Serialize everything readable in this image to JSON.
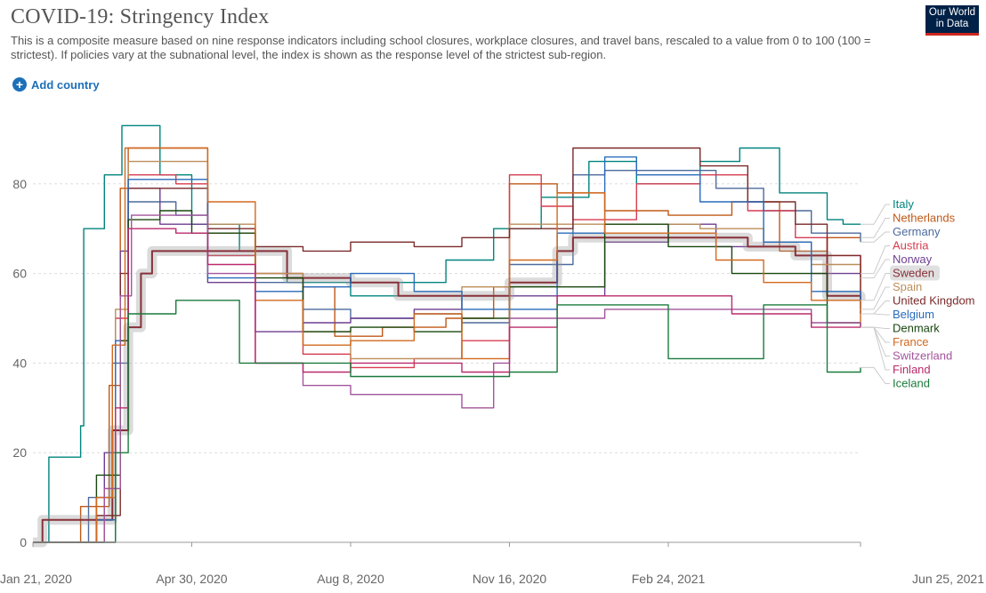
{
  "header": {
    "title": "COVID-19: Stringency Index",
    "subtitle": "This is a composite measure based on nine response indicators including school closures, workplace closures, and travel bans, rescaled to a value from 0 to 100 (100 = strictest). If policies vary at the subnational level, the index is shown as the response level of the strictest sub-region.",
    "logo_line1": "Our World",
    "logo_line2": "in Data",
    "logo_color": "#002147"
  },
  "controls": {
    "add_country_label": "Add country",
    "add_icon": "plus-circle-icon"
  },
  "chart_data": {
    "type": "line",
    "title": "COVID-19: Stringency Index",
    "xlabel": "",
    "ylabel": "",
    "ylim": [
      0,
      100
    ],
    "yticks": [
      0,
      20,
      40,
      60,
      80
    ],
    "xlim": [
      0,
      521
    ],
    "xticks": [
      {
        "day": 0,
        "label": "Jan 21, 2020"
      },
      {
        "day": 100,
        "label": "Apr 30, 2020"
      },
      {
        "day": 200,
        "label": "Aug 8, 2020"
      },
      {
        "day": 300,
        "label": "Nov 16, 2020"
      },
      {
        "day": 400,
        "label": "Feb 24, 2021"
      },
      {
        "day": 521,
        "label": "Jun 25, 2021"
      }
    ],
    "grid": true,
    "highlighted": "Sweden",
    "series": [
      {
        "name": "Italy",
        "color": "#00847e",
        "points": [
          [
            0,
            0
          ],
          [
            10,
            19
          ],
          [
            30,
            26
          ],
          [
            32,
            70
          ],
          [
            45,
            82
          ],
          [
            56,
            93
          ],
          [
            80,
            82
          ],
          [
            100,
            71
          ],
          [
            130,
            65
          ],
          [
            160,
            58
          ],
          [
            200,
            55
          ],
          [
            230,
            58
          ],
          [
            260,
            63
          ],
          [
            290,
            70
          ],
          [
            320,
            77
          ],
          [
            350,
            85
          ],
          [
            380,
            80
          ],
          [
            420,
            85
          ],
          [
            445,
            88
          ],
          [
            470,
            78
          ],
          [
            500,
            72
          ],
          [
            510,
            71
          ],
          [
            521,
            71
          ]
        ]
      },
      {
        "name": "Netherlands",
        "color": "#c05917",
        "points": [
          [
            0,
            0
          ],
          [
            30,
            8
          ],
          [
            48,
            35
          ],
          [
            55,
            79
          ],
          [
            60,
            88
          ],
          [
            90,
            88
          ],
          [
            110,
            69
          ],
          [
            140,
            60
          ],
          [
            170,
            57
          ],
          [
            190,
            46
          ],
          [
            220,
            48
          ],
          [
            260,
            50
          ],
          [
            290,
            57
          ],
          [
            300,
            80
          ],
          [
            330,
            78
          ],
          [
            360,
            74
          ],
          [
            400,
            73
          ],
          [
            440,
            76
          ],
          [
            470,
            65
          ],
          [
            500,
            68
          ],
          [
            521,
            68
          ]
        ]
      },
      {
        "name": "Germany",
        "color": "#4c6a9c",
        "points": [
          [
            0,
            0
          ],
          [
            35,
            10
          ],
          [
            50,
            40
          ],
          [
            60,
            76
          ],
          [
            90,
            73
          ],
          [
            110,
            64
          ],
          [
            140,
            58
          ],
          [
            170,
            52
          ],
          [
            200,
            50
          ],
          [
            240,
            51
          ],
          [
            270,
            49
          ],
          [
            300,
            62
          ],
          [
            340,
            82
          ],
          [
            360,
            83
          ],
          [
            400,
            83
          ],
          [
            430,
            79
          ],
          [
            460,
            74
          ],
          [
            490,
            69
          ],
          [
            521,
            67
          ]
        ]
      },
      {
        "name": "Austria",
        "color": "#d73c50",
        "points": [
          [
            0,
            0
          ],
          [
            40,
            5
          ],
          [
            52,
            50
          ],
          [
            60,
            82
          ],
          [
            90,
            80
          ],
          [
            110,
            64
          ],
          [
            140,
            60
          ],
          [
            170,
            42
          ],
          [
            200,
            39
          ],
          [
            240,
            41
          ],
          [
            270,
            45
          ],
          [
            300,
            82
          ],
          [
            320,
            75
          ],
          [
            340,
            72
          ],
          [
            380,
            80
          ],
          [
            420,
            82
          ],
          [
            450,
            74
          ],
          [
            480,
            68
          ],
          [
            500,
            64
          ],
          [
            521,
            60
          ]
        ]
      },
      {
        "name": "Norway",
        "color": "#6d3e91",
        "points": [
          [
            0,
            0
          ],
          [
            45,
            20
          ],
          [
            55,
            65
          ],
          [
            60,
            79
          ],
          [
            80,
            71
          ],
          [
            110,
            58
          ],
          [
            140,
            47
          ],
          [
            170,
            49
          ],
          [
            200,
            50
          ],
          [
            240,
            52
          ],
          [
            270,
            55
          ],
          [
            300,
            55
          ],
          [
            330,
            55
          ],
          [
            360,
            67
          ],
          [
            400,
            71
          ],
          [
            430,
            66
          ],
          [
            460,
            67
          ],
          [
            490,
            60
          ],
          [
            521,
            59
          ]
        ]
      },
      {
        "name": "Sweden",
        "color": "#883039",
        "points": [
          [
            0,
            0
          ],
          [
            5,
            0
          ],
          [
            6,
            5
          ],
          [
            20,
            5
          ],
          [
            40,
            5
          ],
          [
            50,
            25
          ],
          [
            60,
            48
          ],
          [
            68,
            60
          ],
          [
            75,
            65
          ],
          [
            100,
            65
          ],
          [
            140,
            65
          ],
          [
            160,
            59
          ],
          [
            200,
            58
          ],
          [
            230,
            55
          ],
          [
            260,
            55
          ],
          [
            290,
            55
          ],
          [
            300,
            58
          ],
          [
            320,
            58
          ],
          [
            330,
            65
          ],
          [
            340,
            68
          ],
          [
            380,
            68
          ],
          [
            420,
            68
          ],
          [
            450,
            66
          ],
          [
            480,
            64
          ],
          [
            500,
            55
          ],
          [
            521,
            54
          ]
        ]
      },
      {
        "name": "Spain",
        "color": "#bc8e5a",
        "points": [
          [
            0,
            0
          ],
          [
            40,
            10
          ],
          [
            52,
            52
          ],
          [
            60,
            85
          ],
          [
            90,
            85
          ],
          [
            110,
            71
          ],
          [
            140,
            60
          ],
          [
            170,
            47
          ],
          [
            200,
            41
          ],
          [
            240,
            41
          ],
          [
            270,
            57
          ],
          [
            300,
            71
          ],
          [
            320,
            71
          ],
          [
            360,
            71
          ],
          [
            380,
            71
          ],
          [
            420,
            70
          ],
          [
            460,
            67
          ],
          [
            490,
            62
          ],
          [
            521,
            52
          ]
        ]
      },
      {
        "name": "United Kingdom",
        "color": "#7a2a2a",
        "points": [
          [
            0,
            0
          ],
          [
            40,
            6
          ],
          [
            55,
            60
          ],
          [
            60,
            79
          ],
          [
            90,
            79
          ],
          [
            110,
            70
          ],
          [
            140,
            66
          ],
          [
            170,
            65
          ],
          [
            200,
            67
          ],
          [
            240,
            66
          ],
          [
            270,
            68
          ],
          [
            300,
            70
          ],
          [
            340,
            88
          ],
          [
            380,
            88
          ],
          [
            420,
            84
          ],
          [
            450,
            76
          ],
          [
            480,
            71
          ],
          [
            500,
            64
          ],
          [
            521,
            51
          ]
        ]
      },
      {
        "name": "Belgium",
        "color": "#286bbb",
        "points": [
          [
            0,
            0
          ],
          [
            40,
            5
          ],
          [
            52,
            45
          ],
          [
            60,
            81
          ],
          [
            90,
            81
          ],
          [
            110,
            59
          ],
          [
            140,
            56
          ],
          [
            170,
            57
          ],
          [
            200,
            60
          ],
          [
            240,
            56
          ],
          [
            270,
            52
          ],
          [
            300,
            52
          ],
          [
            330,
            69
          ],
          [
            360,
            86
          ],
          [
            380,
            82
          ],
          [
            420,
            76
          ],
          [
            460,
            67
          ],
          [
            490,
            56
          ],
          [
            521,
            51
          ]
        ]
      },
      {
        "name": "Denmark",
        "color": "#18470f",
        "points": [
          [
            0,
            0
          ],
          [
            40,
            15
          ],
          [
            55,
            45
          ],
          [
            60,
            72
          ],
          [
            80,
            74
          ],
          [
            100,
            69
          ],
          [
            140,
            59
          ],
          [
            170,
            47
          ],
          [
            200,
            48
          ],
          [
            240,
            47
          ],
          [
            270,
            50
          ],
          [
            300,
            57
          ],
          [
            330,
            57
          ],
          [
            360,
            71
          ],
          [
            400,
            66
          ],
          [
            440,
            60
          ],
          [
            470,
            60
          ],
          [
            500,
            49
          ],
          [
            521,
            48
          ]
        ]
      },
      {
        "name": "France",
        "color": "#d2691e",
        "points": [
          [
            0,
            0
          ],
          [
            40,
            10
          ],
          [
            50,
            44
          ],
          [
            58,
            88
          ],
          [
            90,
            88
          ],
          [
            110,
            76
          ],
          [
            140,
            54
          ],
          [
            170,
            44
          ],
          [
            200,
            45
          ],
          [
            240,
            51
          ],
          [
            270,
            41
          ],
          [
            300,
            63
          ],
          [
            330,
            78
          ],
          [
            360,
            69
          ],
          [
            400,
            69
          ],
          [
            430,
            63
          ],
          [
            460,
            58
          ],
          [
            490,
            54
          ],
          [
            521,
            48
          ]
        ]
      },
      {
        "name": "Switzerland",
        "color": "#a2559c",
        "points": [
          [
            0,
            0
          ],
          [
            45,
            12
          ],
          [
            55,
            55
          ],
          [
            62,
            73
          ],
          [
            90,
            73
          ],
          [
            110,
            60
          ],
          [
            140,
            40
          ],
          [
            170,
            35
          ],
          [
            200,
            33
          ],
          [
            240,
            33
          ],
          [
            270,
            30
          ],
          [
            290,
            40
          ],
          [
            300,
            50
          ],
          [
            330,
            50
          ],
          [
            360,
            52
          ],
          [
            400,
            52
          ],
          [
            440,
            52
          ],
          [
            470,
            52
          ],
          [
            490,
            49
          ],
          [
            521,
            48
          ]
        ]
      },
      {
        "name": "Finland",
        "color": "#bb2a6c",
        "points": [
          [
            0,
            0
          ],
          [
            40,
            0
          ],
          [
            52,
            30
          ],
          [
            60,
            70
          ],
          [
            90,
            69
          ],
          [
            110,
            62
          ],
          [
            140,
            40
          ],
          [
            170,
            38
          ],
          [
            200,
            40
          ],
          [
            240,
            40
          ],
          [
            270,
            38
          ],
          [
            300,
            48
          ],
          [
            330,
            55
          ],
          [
            360,
            55
          ],
          [
            400,
            55
          ],
          [
            440,
            51
          ],
          [
            470,
            51
          ],
          [
            490,
            48
          ],
          [
            521,
            48
          ]
        ]
      },
      {
        "name": "Iceland",
        "color": "#1a7a3c",
        "points": [
          [
            0,
            0
          ],
          [
            40,
            0
          ],
          [
            52,
            20
          ],
          [
            60,
            51
          ],
          [
            90,
            54
          ],
          [
            110,
            54
          ],
          [
            130,
            40
          ],
          [
            170,
            40
          ],
          [
            200,
            37
          ],
          [
            240,
            37
          ],
          [
            270,
            37
          ],
          [
            300,
            38
          ],
          [
            330,
            53
          ],
          [
            360,
            53
          ],
          [
            400,
            41
          ],
          [
            440,
            41
          ],
          [
            460,
            53
          ],
          [
            480,
            53
          ],
          [
            500,
            38
          ],
          [
            521,
            39
          ]
        ]
      }
    ]
  }
}
